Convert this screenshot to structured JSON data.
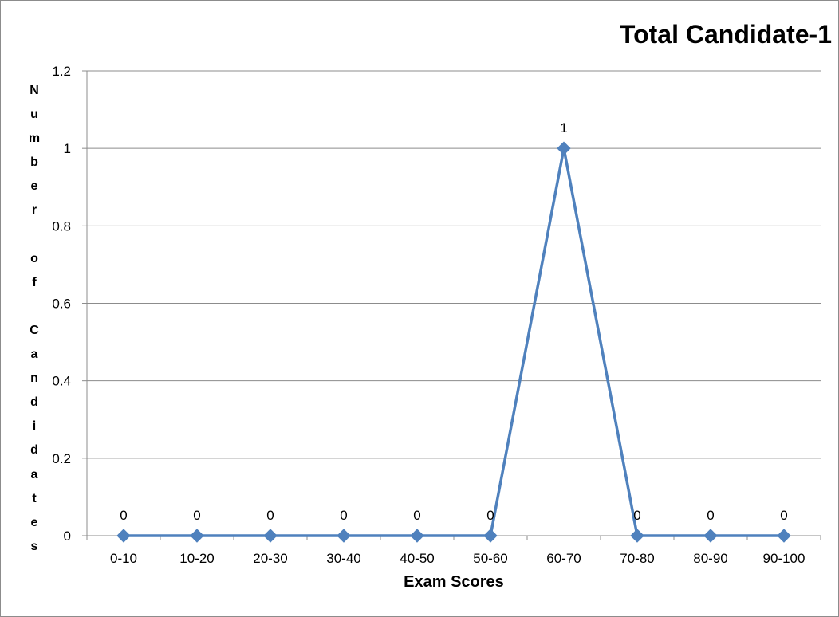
{
  "chart_data": {
    "type": "line",
    "title": "Total Candidate-1",
    "xlabel": "Exam Scores",
    "ylabel": "Number of Candidates",
    "categories": [
      "0-10",
      "10-20",
      "20-30",
      "30-40",
      "40-50",
      "50-60",
      "60-70",
      "70-80",
      "80-90",
      "90-100"
    ],
    "series": [
      {
        "values": [
          0,
          0,
          0,
          0,
          0,
          0,
          1,
          0,
          0,
          0
        ]
      }
    ],
    "ylim": [
      0,
      1.2
    ],
    "yticks": [
      "0",
      "0.2",
      "0.4",
      "0.6",
      "0.8",
      "1",
      "1.2"
    ],
    "grid": true,
    "data_labels": true,
    "marker": "diamond",
    "line_color": "#4f81bd"
  }
}
